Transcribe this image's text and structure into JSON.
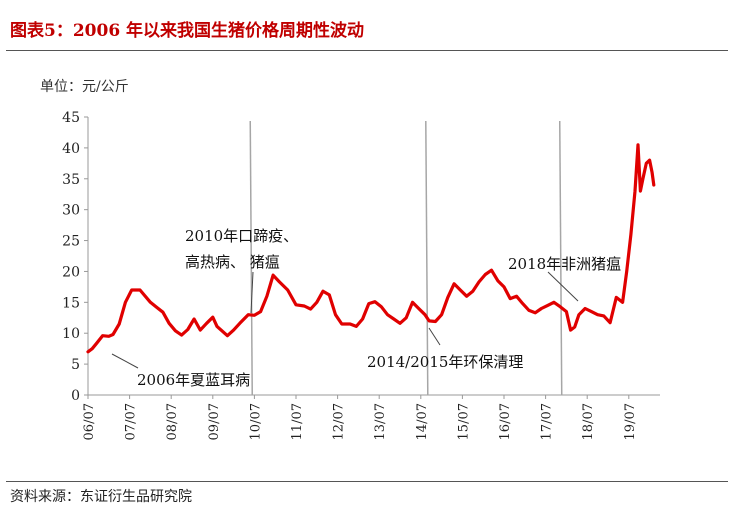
{
  "title": "图表5：2006 年以来我国生猪价格周期性波动",
  "source": "资料来源：东证衍生品研究院",
  "chart_data": {
    "type": "line",
    "title": "图表5：2006 年以来我国生猪价格周期性波动",
    "unit_label": "单位：元/公斤",
    "xlabel": "",
    "ylabel": "元/公斤",
    "ylim": [
      0,
      45
    ],
    "yticks": [
      0,
      5,
      10,
      15,
      20,
      25,
      30,
      35,
      40,
      45
    ],
    "xticks": [
      "06/07",
      "07/07",
      "08/07",
      "09/07",
      "10/07",
      "11/07",
      "12/07",
      "13/07",
      "14/07",
      "15/07",
      "16/07",
      "17/07",
      "18/07",
      "19/07"
    ],
    "line_color": "#e00000",
    "series": [
      {
        "name": "生猪价格",
        "x": [
          2006.5,
          2006.6,
          2006.7,
          2006.85,
          2007.0,
          2007.1,
          2007.25,
          2007.4,
          2007.55,
          2007.75,
          2008.0,
          2008.15,
          2008.3,
          2008.45,
          2008.6,
          2008.75,
          2008.9,
          2009.05,
          2009.2,
          2009.35,
          2009.5,
          2009.6,
          2009.7,
          2009.85,
          2010.0,
          2010.15,
          2010.35,
          2010.5,
          2010.65,
          2010.8,
          2010.95,
          2011.1,
          2011.3,
          2011.5,
          2011.7,
          2011.85,
          2012.0,
          2012.15,
          2012.3,
          2012.45,
          2012.6,
          2012.8,
          2012.95,
          2013.1,
          2013.25,
          2013.4,
          2013.55,
          2013.7,
          2013.85,
          2014.0,
          2014.15,
          2014.3,
          2014.45,
          2014.6,
          2014.7,
          2014.85,
          2015.0,
          2015.15,
          2015.3,
          2015.45,
          2015.6,
          2015.75,
          2015.9,
          2016.05,
          2016.2,
          2016.35,
          2016.5,
          2016.65,
          2016.8,
          2016.95,
          2017.1,
          2017.25,
          2017.4,
          2017.55,
          2017.7,
          2017.85,
          2018.0,
          2018.1,
          2018.2,
          2018.3,
          2018.45,
          2018.6,
          2018.75,
          2018.9,
          2019.05,
          2019.2,
          2019.35,
          2019.45,
          2019.55,
          2019.65,
          2019.72,
          2019.78,
          2019.84,
          2019.92,
          2020.0,
          2020.06,
          2020.1
        ],
        "values": [
          7.0,
          7.5,
          8.3,
          9.6,
          9.5,
          9.8,
          11.5,
          15.0,
          17.0,
          17.0,
          15.0,
          14.2,
          13.4,
          11.6,
          10.4,
          9.7,
          10.6,
          12.3,
          10.5,
          11.6,
          12.6,
          11.1,
          10.5,
          9.6,
          10.5,
          11.6,
          13.0,
          12.9,
          13.5,
          16.0,
          19.4,
          18.3,
          17.0,
          14.6,
          14.4,
          13.9,
          15.0,
          16.8,
          16.2,
          13.0,
          11.5,
          11.5,
          11.1,
          12.3,
          14.8,
          15.1,
          14.3,
          13.0,
          12.3,
          11.6,
          12.5,
          15.0,
          14.0,
          13.0,
          12.0,
          11.9,
          13.0,
          15.8,
          18.0,
          17.0,
          16.0,
          16.8,
          18.3,
          19.5,
          20.2,
          18.5,
          17.5,
          15.6,
          16.0,
          14.8,
          13.7,
          13.3,
          14.0,
          14.5,
          15.0,
          14.3,
          13.5,
          10.5,
          11.0,
          13.0,
          14.0,
          13.5,
          13.0,
          12.8,
          11.7,
          15.8,
          15.0,
          20.0,
          26.0,
          33.0,
          40.5,
          33.0,
          35.0,
          37.5,
          38.0,
          36.0,
          34.0
        ]
      }
    ],
    "vlines": [
      2010.4,
      2014.62,
      2017.84
    ],
    "annotations": [
      {
        "text": "2006年夏蓝耳病"
      },
      {
        "text": "2010年口蹄疫、"
      },
      {
        "text": "高热病、 猪瘟"
      },
      {
        "text": "2014/2015年环保清理"
      },
      {
        "text": "2018年非洲猪瘟"
      }
    ]
  }
}
